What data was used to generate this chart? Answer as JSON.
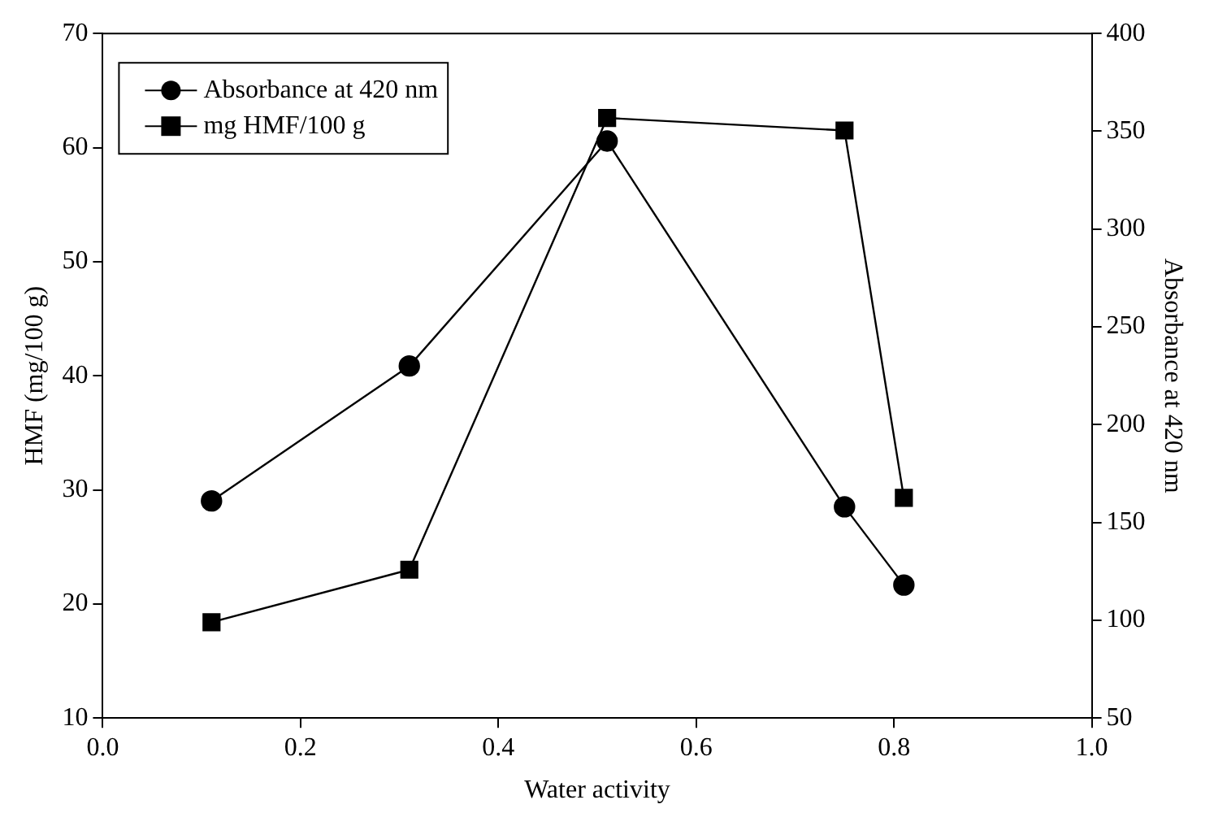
{
  "chart_data": {
    "type": "line",
    "xlabel": "Water activity",
    "ylabel": "HMF (mg/100 g)",
    "y2label": "Absorbance at 420 nm",
    "x": [
      0.11,
      0.31,
      0.51,
      0.75,
      0.81
    ],
    "series": [
      {
        "name": "Absorbance at 420 nm",
        "color": "#000000",
        "axis": "y2",
        "marker": "circle",
        "values": [
          161,
          230,
          345,
          158,
          118
        ]
      },
      {
        "name": "mg HMF/100 g",
        "color": "#000000",
        "marker": "square",
        "values": [
          18.4,
          23.0,
          62.6,
          61.5,
          29.3
        ]
      }
    ],
    "xlim": [
      0,
      1
    ],
    "xticks": [
      {
        "value": 0,
        "label": "0.0"
      },
      {
        "value": 0.2,
        "label": "0.2"
      },
      {
        "value": 0.4,
        "label": "0.4"
      },
      {
        "value": 0.6,
        "label": "0.6"
      },
      {
        "value": 0.8,
        "label": "0.8"
      },
      {
        "value": 1,
        "label": "1.0"
      }
    ],
    "ylim": [
      10,
      70
    ],
    "yticks": [
      10,
      20,
      30,
      40,
      50,
      60,
      70
    ],
    "y2lim": [
      50,
      400
    ],
    "y2ticks": [
      50,
      100,
      150,
      200,
      250,
      300,
      350,
      400
    ],
    "grid": false,
    "legend": "top left"
  }
}
